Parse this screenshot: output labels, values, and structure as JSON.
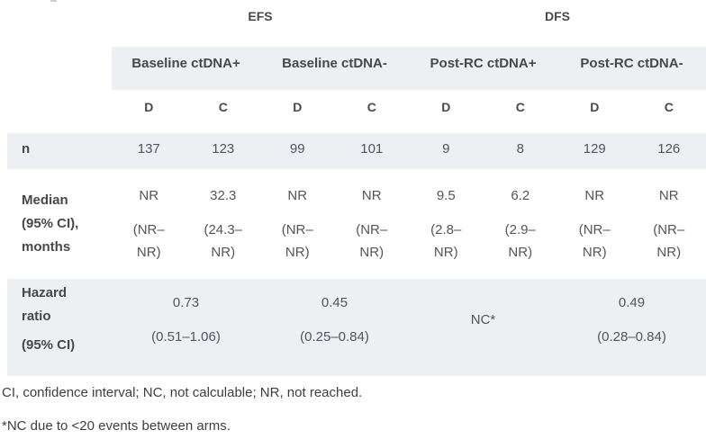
{
  "chart_data": {
    "type": "table",
    "endpoint_groups": [
      "EFS",
      "DFS"
    ],
    "column_groups": [
      "Baseline ctDNA+",
      "Baseline ctDNA-",
      "Post-RC ctDNA+",
      "Post-RC ctDNA-"
    ],
    "arm_subcolumns": [
      "D",
      "C",
      "D",
      "C",
      "D",
      "C",
      "D",
      "C"
    ],
    "rows": {
      "n": {
        "label": "n",
        "values": [
          "137",
          "123",
          "99",
          "101",
          "9",
          "8",
          "129",
          "126"
        ]
      },
      "median": {
        "label": "Median (95% CI), months",
        "cells": [
          {
            "v": "NR",
            "ci1": "(NR–",
            "ci2": "NR)"
          },
          {
            "v": "32.3",
            "ci1": "(24.3–",
            "ci2": "NR)"
          },
          {
            "v": "NR",
            "ci1": "(NR–",
            "ci2": "NR)"
          },
          {
            "v": "NR",
            "ci1": "(NR–",
            "ci2": "NR)"
          },
          {
            "v": "9.5",
            "ci1": "(2.8–",
            "ci2": "NR)"
          },
          {
            "v": "6.2",
            "ci1": "(2.9–",
            "ci2": "NR)"
          },
          {
            "v": "NR",
            "ci1": "(NR–",
            "ci2": "NR)"
          },
          {
            "v": "NR",
            "ci1": "(NR–",
            "ci2": "NR)"
          }
        ]
      },
      "hazard": {
        "label_1": "Hazard ratio",
        "label_2": "(95% CI)",
        "cells": [
          {
            "v": "0.73",
            "ci": "(0.51–1.06)"
          },
          {
            "v": "0.45",
            "ci": "(0.25–0.84)"
          },
          {
            "v": "NC*",
            "ci": ""
          },
          {
            "v": "0.49",
            "ci": "(0.28–0.84)"
          }
        ]
      }
    }
  },
  "footnotes": [
    "CI, confidence interval; NC, not calculable; NR, not reached.",
    "*NC due to <20 events between arms."
  ],
  "colors": {
    "band": "#edeff3",
    "header_text": "#47484c",
    "data_text": "#53555a",
    "footnote_text": "#3d3e41"
  }
}
